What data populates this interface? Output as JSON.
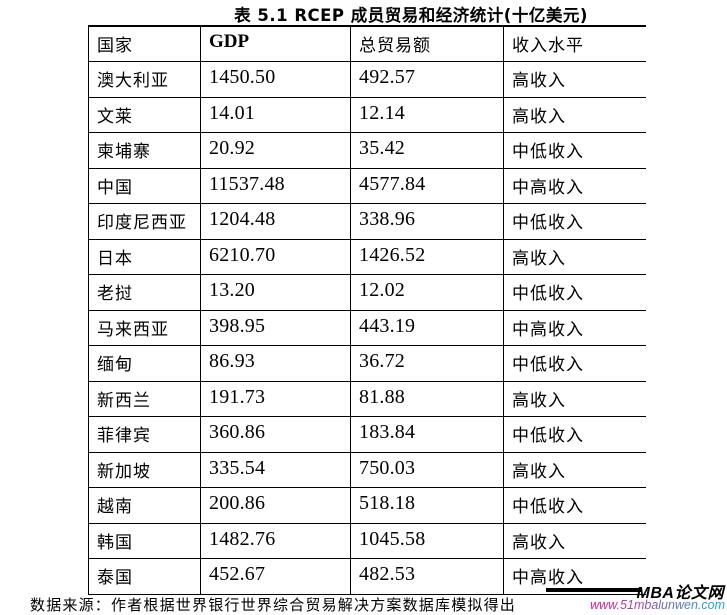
{
  "title": "表 5.1 RCEP 成员贸易和经济统计(十亿美元)",
  "table": {
    "columns": [
      "国家",
      "GDP",
      "总贸易额",
      "收入水平"
    ],
    "rows": [
      [
        "澳大利亚",
        "1450.50",
        "492.57",
        "高收入"
      ],
      [
        "文莱",
        "14.01",
        "12.14",
        "高收入"
      ],
      [
        "柬埔寨",
        "20.92",
        "35.42",
        "中低收入"
      ],
      [
        "中国",
        "11537.48",
        "4577.84",
        "中高收入"
      ],
      [
        "印度尼西亚",
        "1204.48",
        "338.96",
        "中低收入"
      ],
      [
        "日本",
        "6210.70",
        "1426.52",
        "高收入"
      ],
      [
        "老挝",
        "13.20",
        "12.02",
        "中低收入"
      ],
      [
        "马来西亚",
        "398.95",
        "443.19",
        "中高收入"
      ],
      [
        "缅甸",
        "86.93",
        "36.72",
        "中低收入"
      ],
      [
        "新西兰",
        "191.73",
        "81.88",
        "高收入"
      ],
      [
        "菲律宾",
        "360.86",
        "183.84",
        "中低收入"
      ],
      [
        "新加坡",
        "335.54",
        "750.03",
        "高收入"
      ],
      [
        "越南",
        "200.86",
        "518.18",
        "中低收入"
      ],
      [
        "韩国",
        "1482.76",
        "1045.58",
        "高收入"
      ],
      [
        "泰国",
        "452.67",
        "482.53",
        "中高收入"
      ]
    ]
  },
  "footer": {
    "source_note": "数据来源：作者根据世界银行世界综合贸易解决方案数据库模拟得出"
  },
  "watermark": {
    "site_name": "MBA论文网",
    "site_url": "www.51mbalunwen.com",
    "url_gradient_start": "#e6189b",
    "url_gradient_end": "#18a8e6",
    "text_color": "#000000"
  }
}
